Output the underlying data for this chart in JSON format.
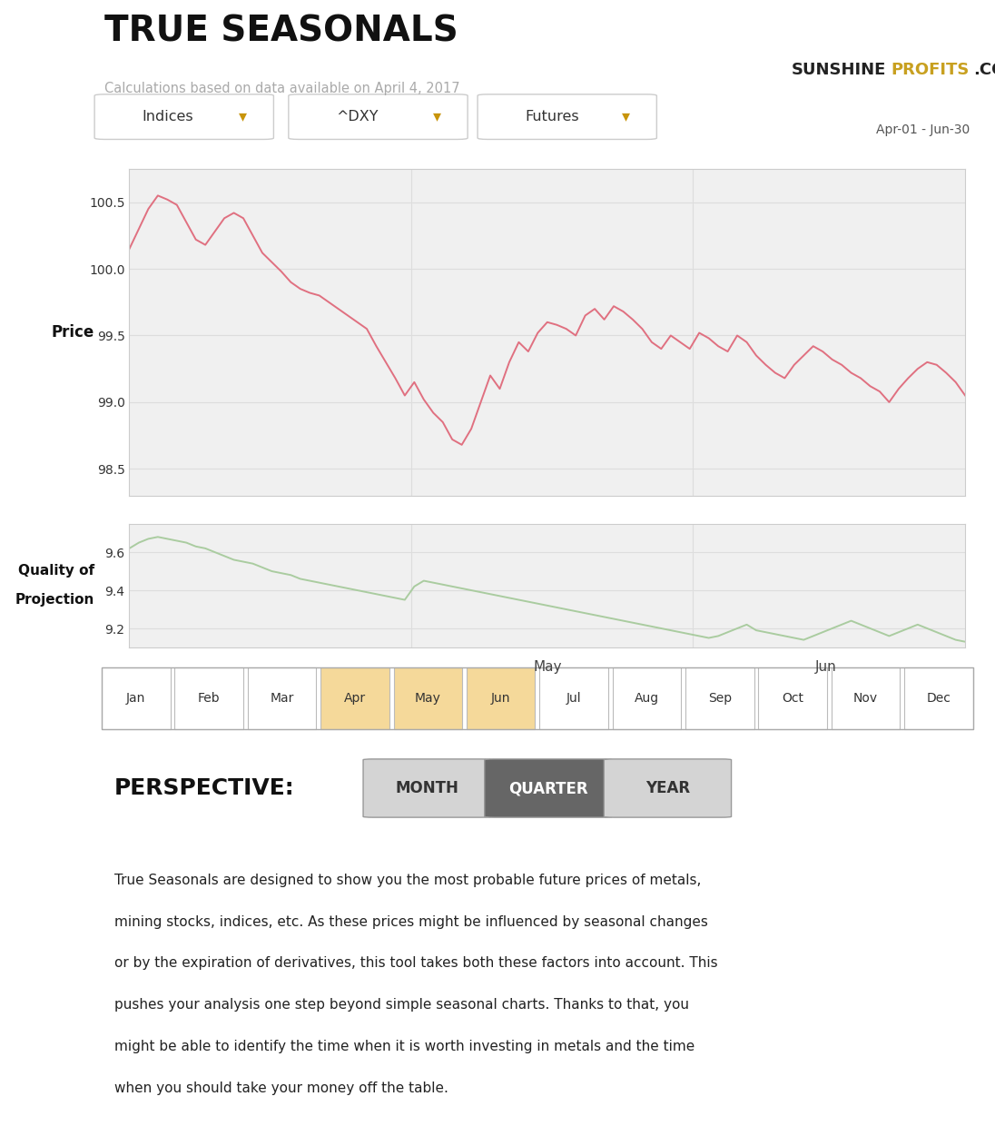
{
  "title": "TRUE SEASONALS",
  "subtitle": "Calculations based on data available on April 4, 2017",
  "date_range": "Apr-01 - Jun-30",
  "dropdown1": "Indices",
  "dropdown2": "^DXY",
  "dropdown3": "Futures",
  "price_ylabel": "Price",
  "price_yticks": [
    98.5,
    99.0,
    99.5,
    100.0,
    100.5
  ],
  "quality_yticks": [
    9.2,
    9.4,
    9.6
  ],
  "price_ylim": [
    98.3,
    100.75
  ],
  "quality_ylim": [
    9.1,
    9.75
  ],
  "price_line_color": "#e07080",
  "quality_line_color": "#aacca0",
  "bg_color": "#f0f0f0",
  "page_bg": "#ffffff",
  "grid_color": "#dddddd",
  "months": [
    "Jan",
    "Feb",
    "Mar",
    "Apr",
    "May",
    "Jun",
    "Jul",
    "Aug",
    "Sep",
    "Oct",
    "Nov",
    "Dec"
  ],
  "highlighted_months": [
    "Apr",
    "May",
    "Jun"
  ],
  "month_highlight_color": "#f5d99a",
  "perspective_label": "PERSPECTIVE:",
  "buttons": [
    "MONTH",
    "QUARTER",
    "YEAR"
  ],
  "active_button": "QUARTER",
  "active_button_color": "#666666",
  "inactive_button_color": "#d4d4d4",
  "desc_lines": [
    "True Seasonals are designed to show you the most probable future prices of metals,",
    "mining stocks, indices, etc. As these prices might be influenced by seasonal changes",
    "or by the expiration of derivatives, this tool takes both these factors into account. This",
    "pushes your analysis one step beyond simple seasonal charts. Thanks to that, you",
    "might be able to identify the time when it is worth investing in metals and the time",
    "when you should take your money off the table."
  ],
  "price_data": [
    100.15,
    100.3,
    100.45,
    100.55,
    100.52,
    100.48,
    100.35,
    100.22,
    100.18,
    100.28,
    100.38,
    100.42,
    100.38,
    100.25,
    100.12,
    100.05,
    99.98,
    99.9,
    99.85,
    99.82,
    99.8,
    99.75,
    99.7,
    99.65,
    99.6,
    99.55,
    99.42,
    99.3,
    99.18,
    99.05,
    99.15,
    99.02,
    98.92,
    98.85,
    98.72,
    98.68,
    98.8,
    99.0,
    99.2,
    99.1,
    99.3,
    99.45,
    99.38,
    99.52,
    99.6,
    99.58,
    99.55,
    99.5,
    99.65,
    99.7,
    99.62,
    99.72,
    99.68,
    99.62,
    99.55,
    99.45,
    99.4,
    99.5,
    99.45,
    99.4,
    99.52,
    99.48,
    99.42,
    99.38,
    99.5,
    99.45,
    99.35,
    99.28,
    99.22,
    99.18,
    99.28,
    99.35,
    99.42,
    99.38,
    99.32,
    99.28,
    99.22,
    99.18,
    99.12,
    99.08,
    99.0,
    99.1,
    99.18,
    99.25,
    99.3,
    99.28,
    99.22,
    99.15,
    99.05
  ],
  "quality_data": [
    9.62,
    9.65,
    9.67,
    9.68,
    9.67,
    9.66,
    9.65,
    9.63,
    9.62,
    9.6,
    9.58,
    9.56,
    9.55,
    9.54,
    9.52,
    9.5,
    9.49,
    9.48,
    9.46,
    9.45,
    9.44,
    9.43,
    9.42,
    9.41,
    9.4,
    9.39,
    9.38,
    9.37,
    9.36,
    9.35,
    9.42,
    9.45,
    9.44,
    9.43,
    9.42,
    9.41,
    9.4,
    9.39,
    9.38,
    9.37,
    9.36,
    9.35,
    9.34,
    9.33,
    9.32,
    9.31,
    9.3,
    9.29,
    9.28,
    9.27,
    9.26,
    9.25,
    9.24,
    9.23,
    9.22,
    9.21,
    9.2,
    9.19,
    9.18,
    9.17,
    9.16,
    9.15,
    9.16,
    9.18,
    9.2,
    9.22,
    9.19,
    9.18,
    9.17,
    9.16,
    9.15,
    9.14,
    9.16,
    9.18,
    9.2,
    9.22,
    9.24,
    9.22,
    9.2,
    9.18,
    9.16,
    9.18,
    9.2,
    9.22,
    9.2,
    9.18,
    9.16,
    9.14,
    9.13
  ]
}
